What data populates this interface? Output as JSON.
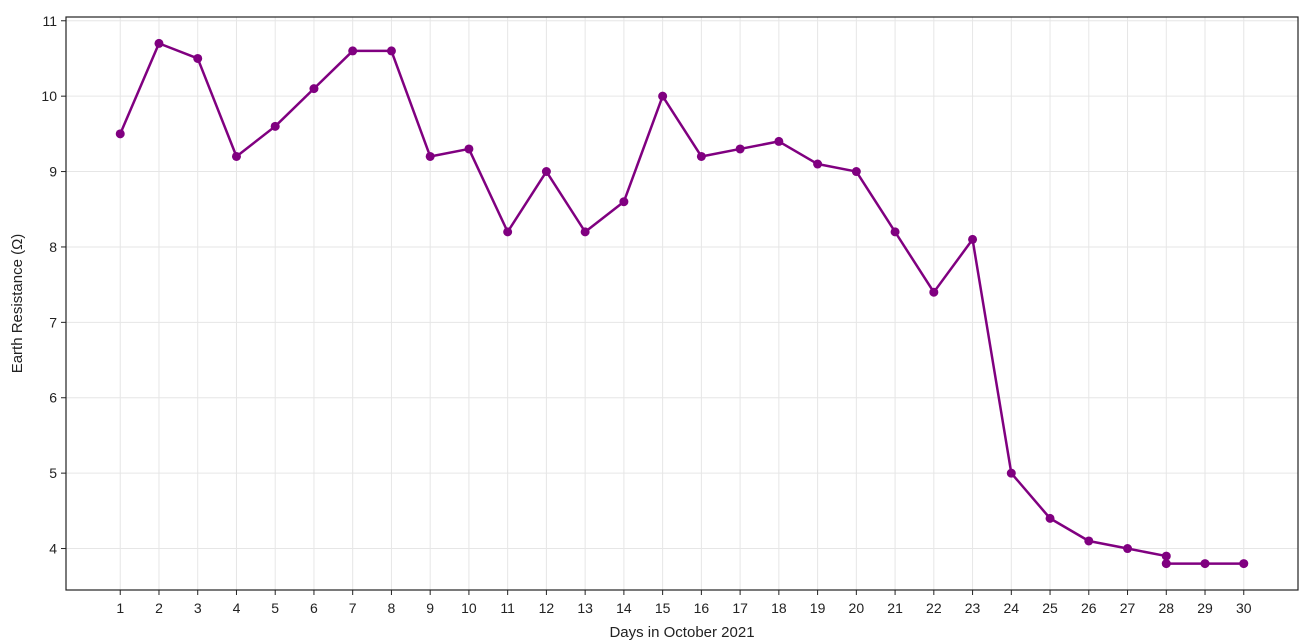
{
  "chart_data": {
    "type": "line",
    "title": "",
    "xlabel": "Days in October 2021",
    "ylabel": "Earth Resistance (Ω)",
    "x": [
      1,
      2,
      3,
      4,
      5,
      6,
      7,
      8,
      9,
      10,
      11,
      12,
      13,
      14,
      15,
      16,
      17,
      18,
      19,
      20,
      21,
      22,
      23,
      24,
      25,
      26,
      27,
      28,
      28,
      29,
      30
    ],
    "series": [
      {
        "values": [
          9.5,
          10.7,
          10.5,
          9.2,
          9.6,
          10.1,
          10.6,
          10.6,
          9.2,
          9.3,
          8.2,
          9.0,
          8.2,
          8.6,
          10.0,
          9.2,
          9.3,
          9.4,
          9.1,
          9.0,
          8.2,
          7.4,
          8.1,
          5.0,
          4.4,
          4.1,
          4.0,
          3.9,
          3.8,
          3.8,
          3.8
        ],
        "color": "#800080"
      }
    ],
    "xticks": [
      1,
      2,
      3,
      4,
      5,
      6,
      7,
      8,
      9,
      10,
      11,
      12,
      13,
      14,
      15,
      16,
      17,
      18,
      19,
      20,
      21,
      22,
      23,
      24,
      25,
      26,
      27,
      28,
      29,
      30
    ],
    "yticks": [
      4,
      5,
      6,
      7,
      8,
      9,
      10,
      11
    ],
    "xlim": [
      -0.4,
      31.4
    ],
    "ylim": [
      3.45,
      11.05
    ],
    "grid": true,
    "legend": "none"
  }
}
